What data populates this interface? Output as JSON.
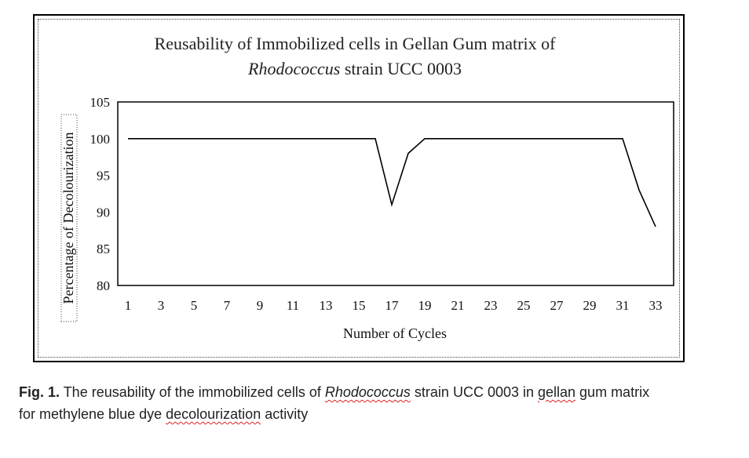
{
  "chart_data": {
    "type": "line",
    "title_line1": "Reusability of Immobilized cells in Gellan Gum matrix of",
    "title_line2_italic": "Rhodococcus",
    "title_line2_rest": " strain UCC 0003",
    "xlabel": "Number of Cycles",
    "ylabel": "Percentage of Decolourization",
    "ylim": [
      80,
      105
    ],
    "yticks": [
      "80",
      "85",
      "90",
      "95",
      "100",
      "105"
    ],
    "xticks": [
      "1",
      "3",
      "5",
      "7",
      "9",
      "11",
      "13",
      "15",
      "17",
      "19",
      "21",
      "23",
      "25",
      "27",
      "29",
      "31",
      "33"
    ],
    "x": [
      1,
      2,
      3,
      4,
      5,
      6,
      7,
      8,
      9,
      10,
      11,
      12,
      13,
      14,
      15,
      16,
      17,
      18,
      19,
      20,
      21,
      22,
      23,
      24,
      25,
      26,
      27,
      28,
      29,
      30,
      31,
      32,
      33
    ],
    "values": [
      100,
      100,
      100,
      100,
      100,
      100,
      100,
      100,
      100,
      100,
      100,
      100,
      100,
      100,
      100,
      100,
      91,
      98,
      100,
      100,
      100,
      100,
      100,
      100,
      100,
      100,
      100,
      100,
      100,
      100,
      100,
      93,
      88
    ],
    "grid": false,
    "line_color": "#000000"
  },
  "caption": {
    "fig_label": "Fig. 1.",
    "part1": " The reusability of the immobilized cells of ",
    "genus": "Rhodococcus",
    "part2": " strain UCC 0003 in ",
    "gellan": "gellan",
    "part3": " gum matrix",
    "line2_start": "for methylene blue dye ",
    "decolourization": "decolourization",
    "line2_end": " activity"
  }
}
